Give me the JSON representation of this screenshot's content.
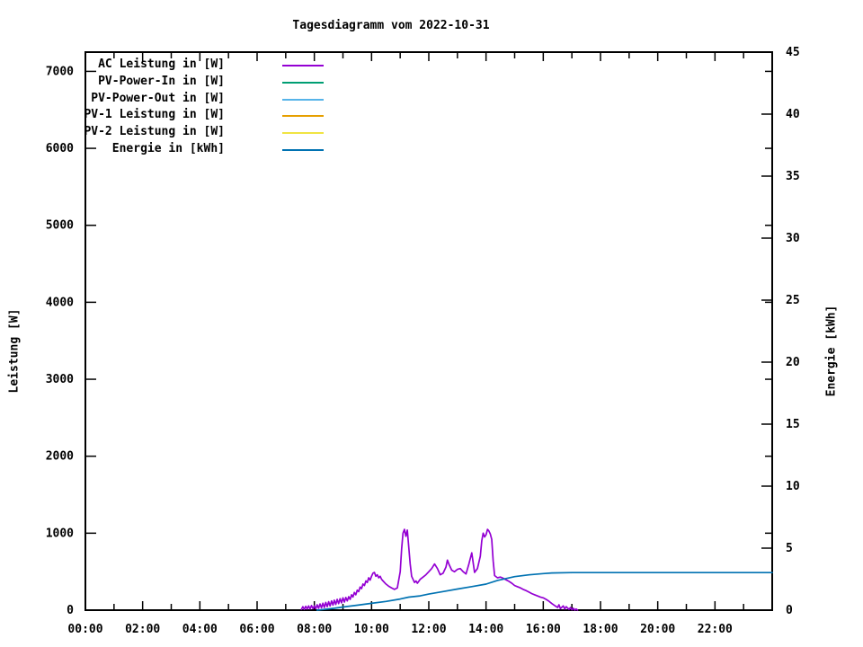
{
  "title": "Tagesdiagramm vom 2022-10-31",
  "axes": {
    "left_label": "Leistung [W]",
    "right_label": "Energie [kWh]",
    "x_tick_labels": [
      "00:00",
      "02:00",
      "04:00",
      "06:00",
      "08:00",
      "10:00",
      "12:00",
      "14:00",
      "16:00",
      "18:00",
      "20:00",
      "22:00"
    ],
    "left_tick_labels": [
      "0",
      "1000",
      "2000",
      "3000",
      "4000",
      "5000",
      "6000",
      "7000"
    ],
    "right_tick_labels": [
      "0",
      "5",
      "10",
      "15",
      "20",
      "25",
      "30",
      "35",
      "40",
      "45"
    ]
  },
  "chart_data": {
    "type": "line",
    "title": "Tagesdiagramm vom 2022-10-31",
    "xlabel": "",
    "x_unit": "time of day (hours)",
    "x_range_hours": [
      0,
      24
    ],
    "x_tick_interval_hours": 2,
    "x_minor_tick_hours": 1,
    "grid": false,
    "legend_position": "top-left-inside",
    "y_left": {
      "label": "Leistung [W]",
      "range": [
        0,
        7250
      ],
      "tick_step": 1000,
      "last_labeled_tick": 7000
    },
    "y_right": {
      "label": "Energie [kWh]",
      "range": [
        0,
        45
      ],
      "tick_step": 5
    },
    "series": [
      {
        "name": "AC Leistung in [W]",
        "color": "#9400d3",
        "axis": "left",
        "visible": true,
        "points": [
          [
            7.55,
            10
          ],
          [
            7.6,
            45
          ],
          [
            7.65,
            10
          ],
          [
            7.7,
            50
          ],
          [
            7.75,
            15
          ],
          [
            7.8,
            55
          ],
          [
            7.85,
            15
          ],
          [
            7.9,
            60
          ],
          [
            7.95,
            20
          ],
          [
            8.0,
            55
          ],
          [
            8.05,
            20
          ],
          [
            8.1,
            70
          ],
          [
            8.15,
            25
          ],
          [
            8.2,
            80
          ],
          [
            8.25,
            30
          ],
          [
            8.3,
            90
          ],
          [
            8.35,
            35
          ],
          [
            8.4,
            100
          ],
          [
            8.45,
            45
          ],
          [
            8.5,
            110
          ],
          [
            8.55,
            55
          ],
          [
            8.6,
            120
          ],
          [
            8.65,
            65
          ],
          [
            8.7,
            130
          ],
          [
            8.75,
            75
          ],
          [
            8.8,
            140
          ],
          [
            8.85,
            85
          ],
          [
            8.9,
            150
          ],
          [
            8.95,
            95
          ],
          [
            9.0,
            160
          ],
          [
            9.05,
            105
          ],
          [
            9.1,
            165
          ],
          [
            9.15,
            120
          ],
          [
            9.2,
            175
          ],
          [
            9.25,
            140
          ],
          [
            9.3,
            200
          ],
          [
            9.35,
            170
          ],
          [
            9.4,
            230
          ],
          [
            9.45,
            200
          ],
          [
            9.5,
            260
          ],
          [
            9.55,
            240
          ],
          [
            9.6,
            300
          ],
          [
            9.65,
            280
          ],
          [
            9.7,
            340
          ],
          [
            9.75,
            320
          ],
          [
            9.8,
            380
          ],
          [
            9.85,
            360
          ],
          [
            9.9,
            420
          ],
          [
            9.95,
            390
          ],
          [
            10.0,
            440
          ],
          [
            10.05,
            480
          ],
          [
            10.1,
            490
          ],
          [
            10.15,
            440
          ],
          [
            10.2,
            460
          ],
          [
            10.25,
            420
          ],
          [
            10.3,
            440
          ],
          [
            10.35,
            400
          ],
          [
            10.4,
            380
          ],
          [
            10.5,
            340
          ],
          [
            10.6,
            310
          ],
          [
            10.7,
            290
          ],
          [
            10.8,
            270
          ],
          [
            10.9,
            290
          ],
          [
            11.0,
            500
          ],
          [
            11.05,
            800
          ],
          [
            11.1,
            1000
          ],
          [
            11.15,
            1050
          ],
          [
            11.2,
            960
          ],
          [
            11.25,
            1040
          ],
          [
            11.3,
            820
          ],
          [
            11.35,
            600
          ],
          [
            11.4,
            440
          ],
          [
            11.5,
            360
          ],
          [
            11.55,
            380
          ],
          [
            11.6,
            350
          ],
          [
            11.7,
            400
          ],
          [
            11.8,
            430
          ],
          [
            11.9,
            460
          ],
          [
            12.0,
            500
          ],
          [
            12.1,
            540
          ],
          [
            12.2,
            600
          ],
          [
            12.3,
            540
          ],
          [
            12.4,
            460
          ],
          [
            12.5,
            480
          ],
          [
            12.6,
            560
          ],
          [
            12.65,
            650
          ],
          [
            12.7,
            600
          ],
          [
            12.8,
            520
          ],
          [
            12.9,
            500
          ],
          [
            13.0,
            530
          ],
          [
            13.1,
            540
          ],
          [
            13.2,
            500
          ],
          [
            13.3,
            470
          ],
          [
            13.4,
            600
          ],
          [
            13.5,
            745
          ],
          [
            13.55,
            620
          ],
          [
            13.6,
            490
          ],
          [
            13.7,
            540
          ],
          [
            13.8,
            700
          ],
          [
            13.85,
            900
          ],
          [
            13.9,
            1000
          ],
          [
            13.95,
            950
          ],
          [
            14.0,
            980
          ],
          [
            14.05,
            1050
          ],
          [
            14.1,
            1030
          ],
          [
            14.15,
            990
          ],
          [
            14.2,
            920
          ],
          [
            14.25,
            640
          ],
          [
            14.3,
            450
          ],
          [
            14.4,
            420
          ],
          [
            14.5,
            430
          ],
          [
            14.6,
            415
          ],
          [
            14.7,
            395
          ],
          [
            14.8,
            375
          ],
          [
            14.9,
            350
          ],
          [
            15.0,
            320
          ],
          [
            15.1,
            305
          ],
          [
            15.2,
            290
          ],
          [
            15.3,
            270
          ],
          [
            15.4,
            255
          ],
          [
            15.5,
            235
          ],
          [
            15.6,
            215
          ],
          [
            15.7,
            200
          ],
          [
            15.8,
            185
          ],
          [
            15.9,
            170
          ],
          [
            16.0,
            160
          ],
          [
            16.1,
            140
          ],
          [
            16.2,
            115
          ],
          [
            16.3,
            85
          ],
          [
            16.4,
            60
          ],
          [
            16.5,
            35
          ],
          [
            16.55,
            70
          ],
          [
            16.6,
            20
          ],
          [
            16.7,
            55
          ],
          [
            16.75,
            15
          ],
          [
            16.8,
            45
          ],
          [
            16.9,
            10
          ],
          [
            16.95,
            35
          ],
          [
            17.0,
            5
          ],
          [
            17.05,
            25
          ],
          [
            17.1,
            0
          ],
          [
            17.15,
            15
          ],
          [
            17.2,
            0
          ]
        ]
      },
      {
        "name": "PV-Power-In in [W]",
        "color": "#009e73",
        "axis": "left",
        "visible": false,
        "points": []
      },
      {
        "name": "PV-Power-Out in [W]",
        "color": "#56b4e9",
        "axis": "left",
        "visible": false,
        "points": []
      },
      {
        "name": "PV-1 Leistung in [W]",
        "color": "#e69f00",
        "axis": "left",
        "visible": false,
        "points": []
      },
      {
        "name": "PV-2 Leistung in [W]",
        "color": "#f0e442",
        "axis": "left",
        "visible": false,
        "points": []
      },
      {
        "name": "Energie in [kWh]",
        "color": "#0072b2",
        "axis": "right",
        "visible": true,
        "points": [
          [
            8.1,
            0
          ],
          [
            8.3,
            0.05
          ],
          [
            8.7,
            0.15
          ],
          [
            9.0,
            0.25
          ],
          [
            9.5,
            0.4
          ],
          [
            10.0,
            0.55
          ],
          [
            10.5,
            0.7
          ],
          [
            11.0,
            0.9
          ],
          [
            11.3,
            1.05
          ],
          [
            11.7,
            1.15
          ],
          [
            12.0,
            1.3
          ],
          [
            12.5,
            1.5
          ],
          [
            13.0,
            1.7
          ],
          [
            13.5,
            1.9
          ],
          [
            14.0,
            2.1
          ],
          [
            14.4,
            2.4
          ],
          [
            15.0,
            2.7
          ],
          [
            15.5,
            2.85
          ],
          [
            16.0,
            2.95
          ],
          [
            16.3,
            3.0
          ],
          [
            17.0,
            3.03
          ],
          [
            24.0,
            3.03
          ]
        ]
      }
    ]
  }
}
